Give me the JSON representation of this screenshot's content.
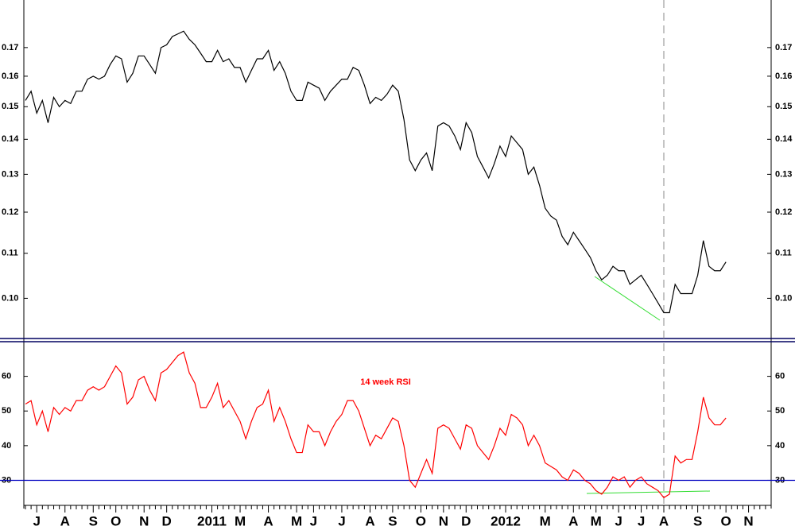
{
  "chart_data": [
    {
      "type": "line",
      "color": "#000000",
      "log_scale": true,
      "ylim": [
        0.092,
        0.188
      ],
      "yticks": [
        {
          "value": 0.1,
          "label": "0.10"
        },
        0.11,
        0.12,
        0.13,
        0.14,
        0.15,
        0.16,
        0.17
      ],
      "values": [
        0.152,
        0.155,
        0.148,
        0.152,
        0.145,
        0.153,
        0.15,
        0.152,
        0.151,
        0.155,
        0.155,
        0.159,
        0.16,
        0.159,
        0.16,
        0.164,
        0.167,
        0.166,
        0.158,
        0.161,
        0.167,
        0.167,
        0.164,
        0.161,
        0.17,
        0.171,
        0.174,
        0.175,
        0.176,
        0.173,
        0.171,
        0.168,
        0.165,
        0.165,
        0.169,
        0.165,
        0.166,
        0.163,
        0.163,
        0.158,
        0.162,
        0.166,
        0.166,
        0.169,
        0.162,
        0.165,
        0.161,
        0.155,
        0.152,
        0.152,
        0.158,
        0.157,
        0.156,
        0.152,
        0.155,
        0.157,
        0.159,
        0.159,
        0.163,
        0.162,
        0.157,
        0.151,
        0.153,
        0.152,
        0.154,
        0.157,
        0.155,
        0.146,
        0.134,
        0.131,
        0.134,
        0.136,
        0.131,
        0.144,
        0.145,
        0.144,
        0.141,
        0.137,
        0.145,
        0.142,
        0.135,
        0.132,
        0.129,
        0.133,
        0.138,
        0.135,
        0.141,
        0.139,
        0.137,
        0.13,
        0.132,
        0.127,
        0.121,
        0.119,
        0.118,
        0.114,
        0.112,
        0.115,
        0.113,
        0.111,
        0.109,
        0.106,
        0.104,
        0.105,
        0.107,
        0.106,
        0.106,
        0.103,
        0.104,
        0.105,
        0.103,
        0.101,
        0.099,
        0.097,
        0.097,
        0.103,
        0.101,
        0.101,
        0.101,
        0.105,
        0.113,
        0.107,
        0.106,
        0.106,
        0.108,
        null,
        null,
        null,
        null,
        null,
        null,
        null
      ]
    },
    {
      "type": "line",
      "color": "#ff0000",
      "annotation": "14 week RSI",
      "ylim": [
        23,
        70
      ],
      "yticks": [
        30,
        40,
        50,
        60
      ],
      "hline": 30,
      "hline_color": "#0000c0",
      "categories": [
        null,
        null,
        "J",
        null,
        null,
        null,
        null,
        "A",
        null,
        null,
        null,
        null,
        "S",
        null,
        null,
        null,
        "O",
        null,
        null,
        null,
        null,
        "N",
        null,
        null,
        null,
        "D",
        null,
        null,
        null,
        null,
        null,
        null,
        null,
        "2011",
        null,
        null,
        null,
        null,
        "M",
        null,
        null,
        null,
        null,
        "A",
        null,
        null,
        null,
        null,
        "M",
        null,
        null,
        "J",
        null,
        null,
        null,
        null,
        "J",
        null,
        null,
        null,
        null,
        "A",
        null,
        null,
        null,
        "S",
        null,
        null,
        null,
        null,
        "O",
        null,
        null,
        null,
        "N",
        null,
        null,
        null,
        "D",
        null,
        null,
        null,
        null,
        null,
        null,
        "2012",
        null,
        null,
        null,
        null,
        null,
        null,
        "M",
        null,
        null,
        null,
        null,
        "A",
        null,
        null,
        null,
        "M",
        null,
        null,
        null,
        "J",
        null,
        null,
        null,
        "J",
        null,
        null,
        null,
        "A",
        null,
        null,
        null,
        null,
        null,
        "S",
        null,
        null,
        null,
        null,
        "O",
        null,
        null,
        null,
        "N",
        null,
        null,
        null
      ],
      "values": [
        52,
        53,
        46,
        50,
        44,
        51,
        49,
        51,
        50,
        53,
        53,
        56,
        57,
        56,
        57,
        60,
        63,
        61,
        52,
        54,
        59,
        60,
        56,
        53,
        61,
        62,
        64,
        66,
        67,
        61,
        58,
        51,
        51,
        54,
        58,
        51,
        53,
        50,
        47,
        42,
        47,
        51,
        52,
        56,
        47,
        51,
        47,
        42,
        38,
        38,
        46,
        44,
        44,
        40,
        44,
        47,
        49,
        53,
        53,
        50,
        45,
        40,
        43,
        42,
        45,
        48,
        47,
        40,
        30,
        28,
        32,
        36,
        32,
        45,
        46,
        45,
        42,
        39,
        46,
        45,
        40,
        38,
        36,
        40,
        45,
        43,
        49,
        48,
        46,
        40,
        43,
        40,
        35,
        34,
        33,
        31,
        30,
        33,
        32,
        30,
        29,
        27,
        26,
        28,
        31,
        30,
        31,
        28,
        30,
        31,
        29,
        28,
        27,
        25,
        26,
        37,
        35,
        36,
        36,
        44,
        54,
        48,
        46,
        46,
        48,
        null,
        null,
        null,
        null,
        null,
        null,
        null
      ]
    }
  ]
}
